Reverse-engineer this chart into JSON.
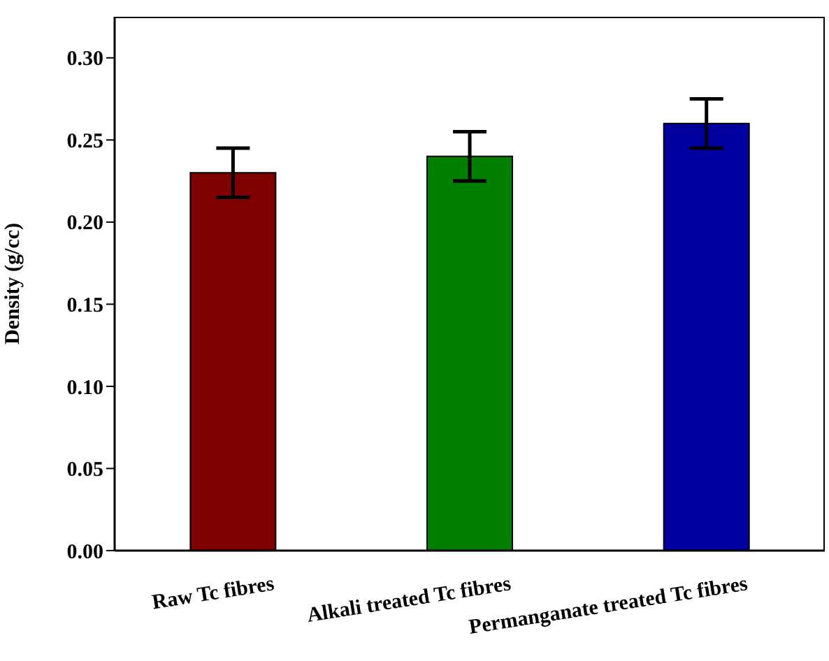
{
  "chart_data": {
    "type": "bar",
    "ylabel": "Density (g/cc)",
    "categories": [
      "Raw Tc fibres",
      "Alkali treated Tc fibres",
      "Permanganate treated Tc fibres"
    ],
    "values": [
      0.23,
      0.24,
      0.26
    ],
    "errors": [
      0.015,
      0.015,
      0.015
    ],
    "colors": [
      "#7f0000",
      "#007f00",
      "#0000a0"
    ],
    "ylim": [
      0,
      0.325
    ],
    "yticks": [
      {
        "value": 0,
        "label": "0.00"
      },
      {
        "value": 0.05,
        "label": "0.05"
      },
      {
        "value": 0.1,
        "label": "0.10"
      },
      {
        "value": 0.15,
        "label": "0.15"
      },
      {
        "value": 0.2,
        "label": "0.20"
      },
      {
        "value": 0.25,
        "label": "0.25"
      },
      {
        "value": 0.3,
        "label": "0.30"
      }
    ],
    "grid": false,
    "legend": false
  }
}
